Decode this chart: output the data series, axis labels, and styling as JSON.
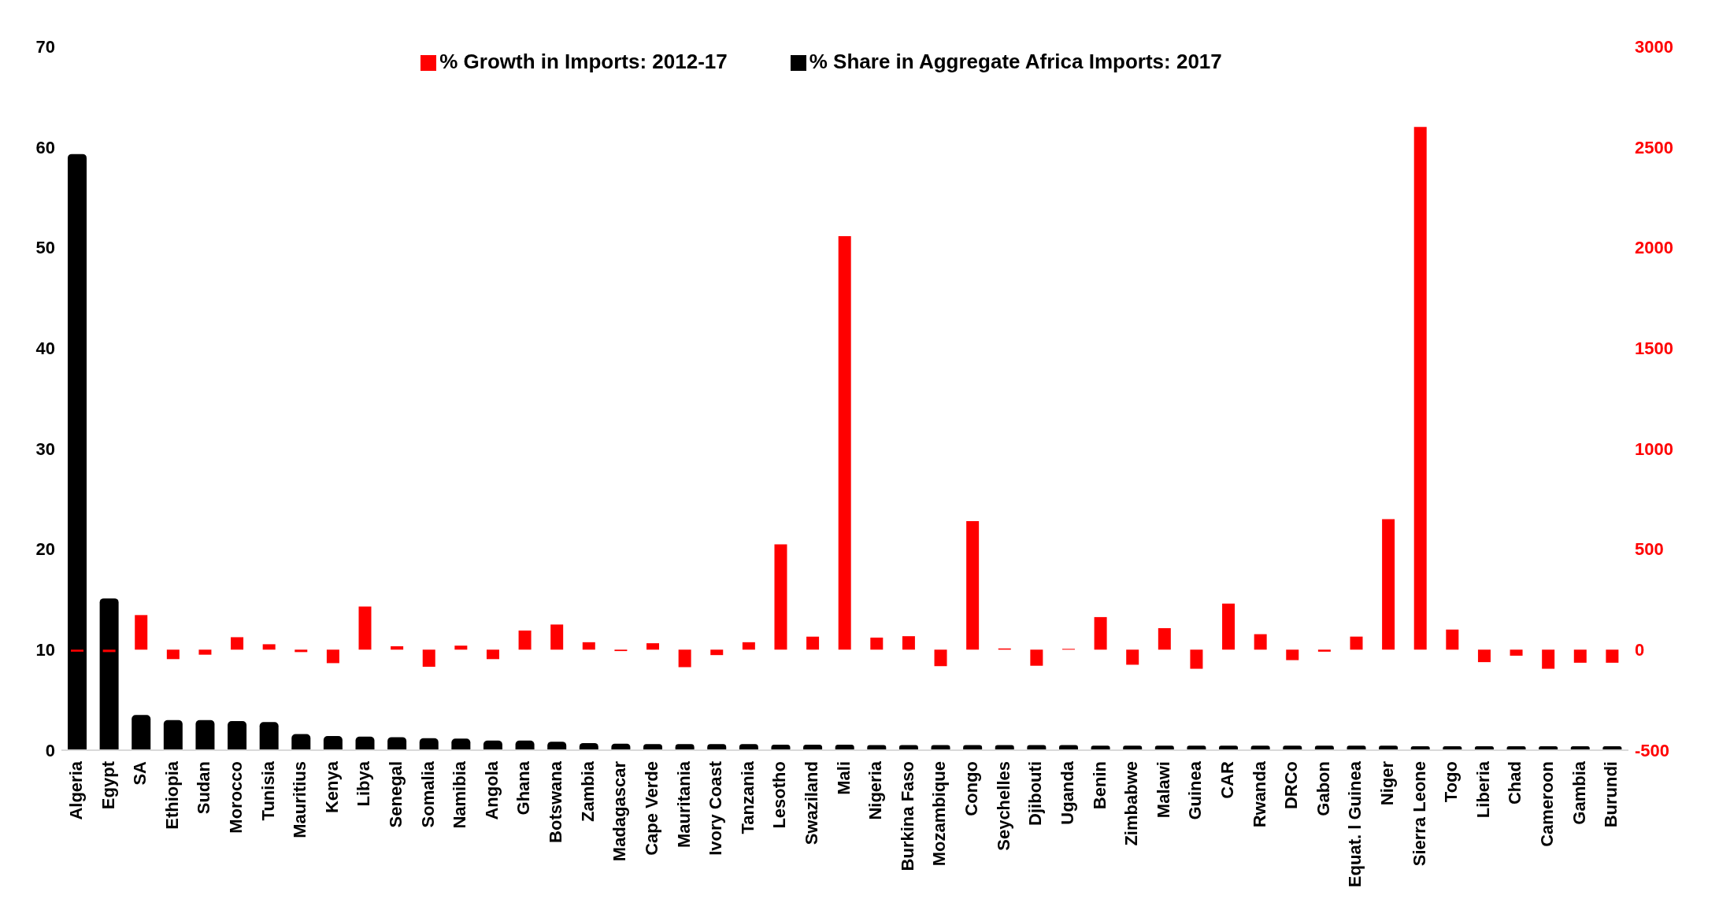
{
  "chart_data": {
    "type": "bar",
    "categories": [
      "Algeria",
      "Egypt",
      "SA",
      "Ethiopia",
      "Sudan",
      "Morocco",
      "Tunisia",
      "Mauritius",
      "Kenya",
      "Libya",
      "Senegal",
      "Somalia",
      "Namibia",
      "Angola",
      "Ghana",
      "Botswana",
      "Zambia",
      "Madagascar",
      "Cape Verde",
      "Mauritania",
      "Ivory Coast",
      "Tanzania",
      "Lesotho",
      "Swaziland",
      "Mali",
      "Nigeria",
      "Burkina Faso",
      "Mozambique",
      "Congo",
      "Seychelles",
      "Djibouti",
      "Uganda",
      "Benin",
      "Zimbabwe",
      "Malawi",
      "Guinea",
      "CAR",
      "Rwanda",
      "DRCo",
      "Gabon",
      "Equat. l Guinea",
      "Niger",
      "Sierra Leone",
      "Togo",
      "Liberia",
      "Chad",
      "Cameroon",
      "Gambia",
      "Burundi"
    ],
    "series": [
      {
        "name": "% Share in Aggregate Africa Imports: 2017",
        "color": "#000000",
        "values": [
          59.3,
          15.1,
          3.5,
          3.0,
          3.0,
          2.9,
          2.8,
          1.6,
          1.4,
          1.35,
          1.3,
          1.2,
          1.15,
          0.95,
          0.95,
          0.85,
          0.7,
          0.65,
          0.6,
          0.6,
          0.6,
          0.6,
          0.55,
          0.55,
          0.55,
          0.5,
          0.5,
          0.5,
          0.5,
          0.5,
          0.5,
          0.5,
          0.45,
          0.45,
          0.45,
          0.45,
          0.45,
          0.45,
          0.45,
          0.45,
          0.45,
          0.45,
          0.4,
          0.4,
          0.4,
          0.4,
          0.4,
          0.4,
          0.4
        ]
      },
      {
        "name": "% Growth in Imports: 2012-17",
        "color": "#ff0000",
        "axis": "y2",
        "values": [
          -10,
          -12,
          172,
          -47,
          -25,
          62,
          27,
          -12,
          -67,
          214,
          17,
          -85,
          20,
          -47,
          95,
          125,
          37,
          -7,
          32,
          -87,
          -27,
          37,
          524,
          65,
          2056,
          60,
          67,
          -82,
          639,
          6,
          -80,
          4,
          162,
          -75,
          107,
          -95,
          229,
          77,
          -52,
          -10,
          65,
          649,
          2600,
          100,
          -62,
          -30,
          -95,
          -65,
          -65
        ]
      }
    ],
    "ylim": [
      0,
      70
    ],
    "yticks": [
      0,
      10,
      20,
      30,
      40,
      50,
      60,
      70
    ],
    "y2lim": [
      -500,
      3000
    ],
    "y2ticks": [
      -500,
      0,
      500,
      1000,
      1500,
      2000,
      2500,
      3000
    ],
    "grid": false,
    "legend": "top"
  }
}
